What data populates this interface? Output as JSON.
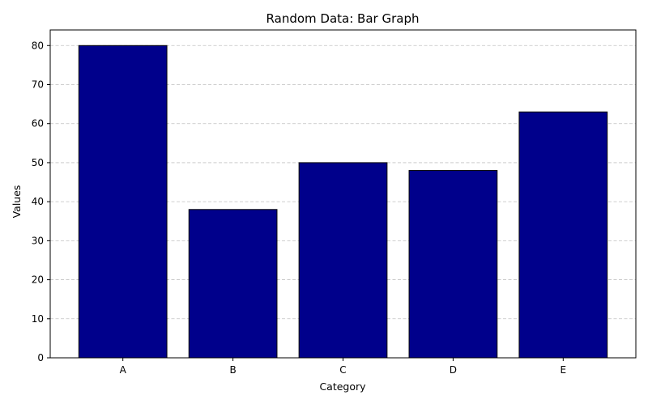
{
  "chart_data": {
    "type": "bar",
    "title": "Random Data: Bar Graph",
    "xlabel": "Category",
    "ylabel": "Values",
    "categories": [
      "A",
      "B",
      "C",
      "D",
      "E"
    ],
    "values": [
      80,
      38,
      50,
      48,
      63
    ],
    "ylim": [
      0,
      84
    ],
    "yticks": [
      0,
      10,
      20,
      30,
      40,
      50,
      60,
      70,
      80
    ],
    "grid": {
      "axis": "y",
      "style": "dashed",
      "color": "#c0c0c0"
    },
    "colors": {
      "bar_fill": "#00008b",
      "bar_edge": "#000000",
      "axis": "#000000"
    }
  }
}
